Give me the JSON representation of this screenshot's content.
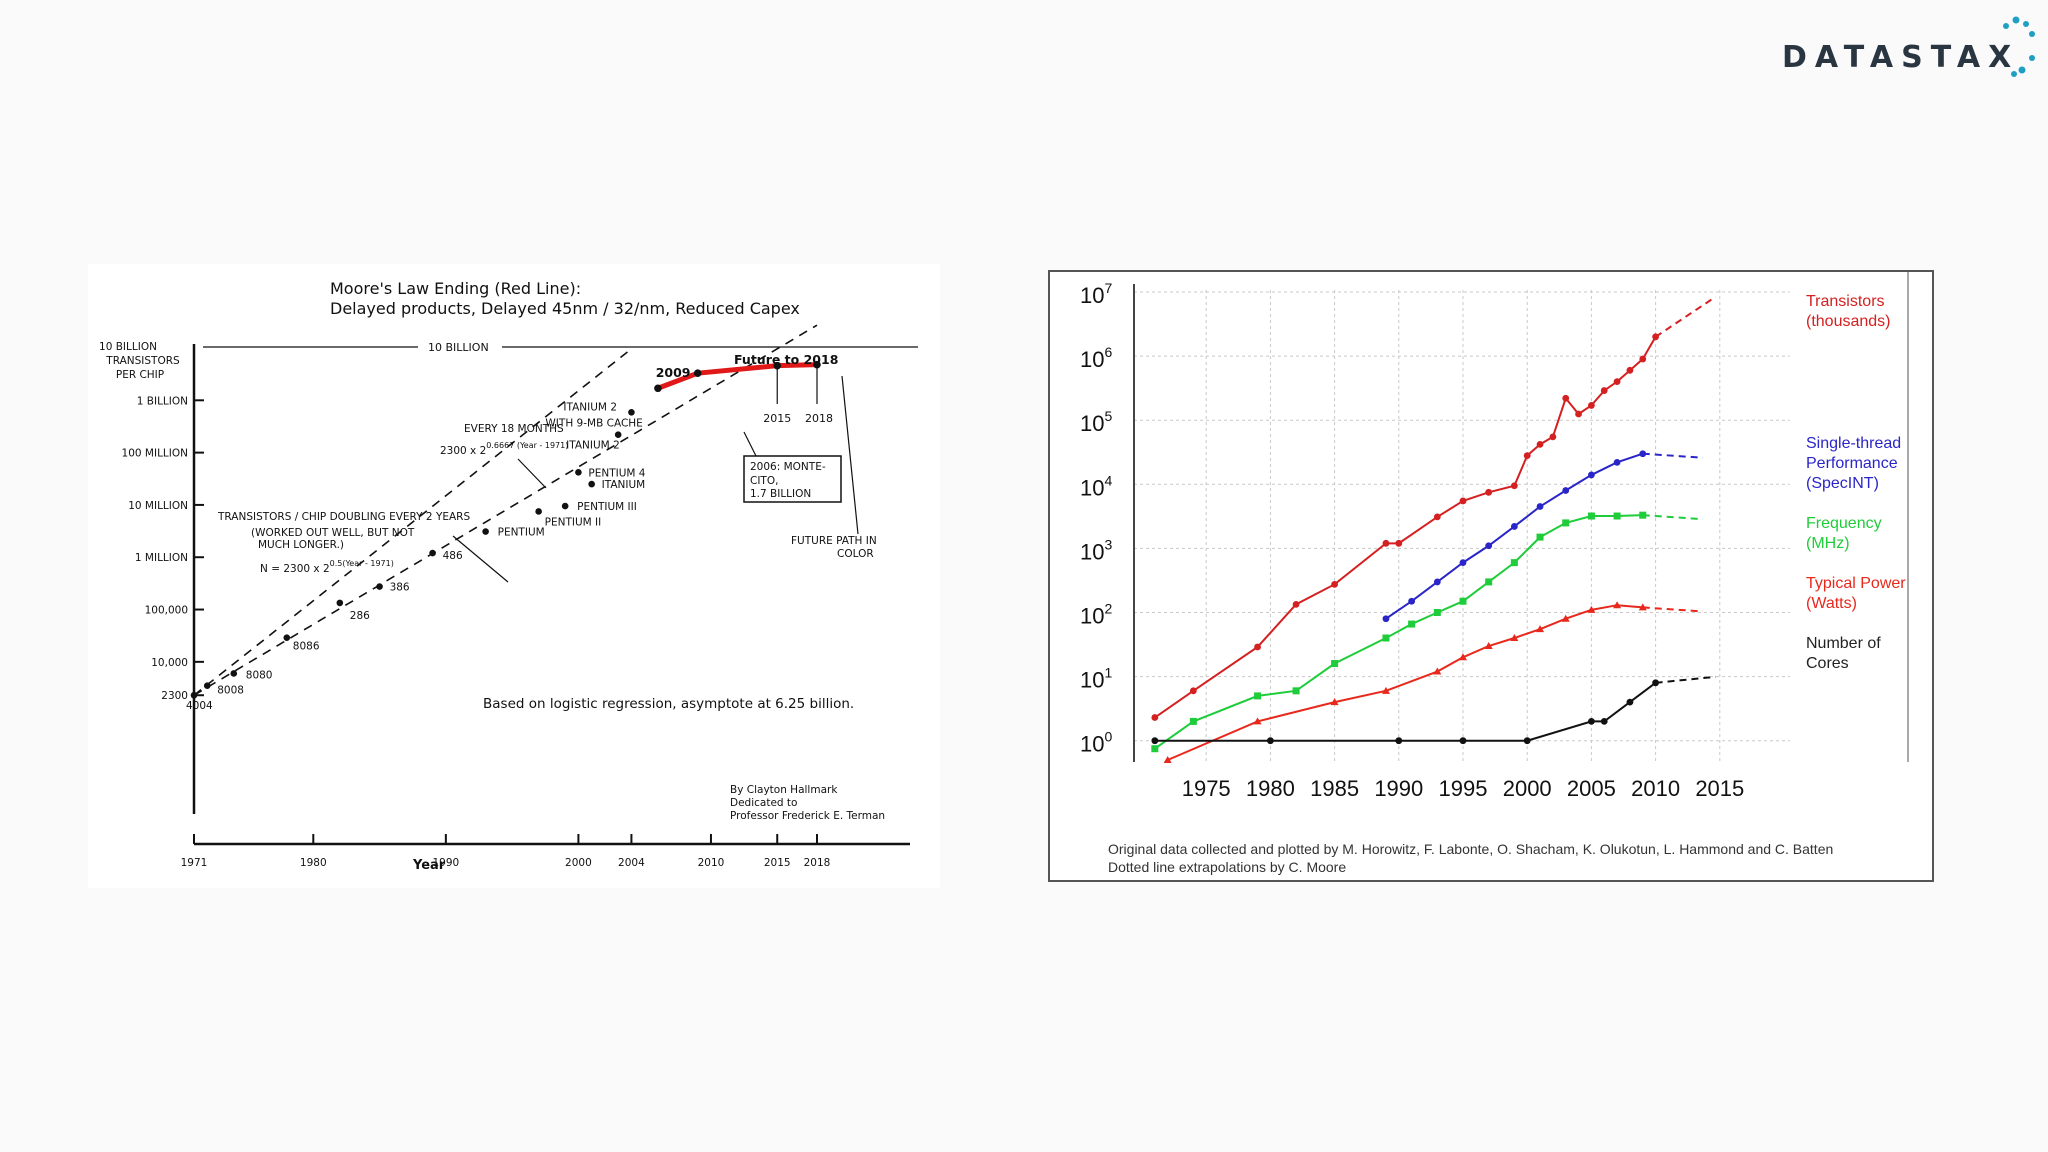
{
  "brand": {
    "logo_text": "DATASTAX",
    "accent": "#1e9fc3"
  },
  "chart_data": [
    {
      "type": "scatter",
      "title": "Moore's Law Ending (Red Line):",
      "subtitle": "Delayed products, Delayed 45nm / 32/nm, Reduced Capex",
      "xlabel": "Year",
      "ylabel": "10 BILLION TRANSISTORS PER CHIP",
      "y_scale": "log",
      "xlim": [
        1971,
        2018
      ],
      "ylim": [
        2300,
        10000000000
      ],
      "x_ticks": [
        "1971",
        "1980",
        "1990",
        "2000",
        "2004",
        "2010",
        "2015",
        "2018"
      ],
      "y_ticks": [
        {
          "label": "2300",
          "value": 2300
        },
        {
          "label": "10,000",
          "value": 10000
        },
        {
          "label": "100,000",
          "value": 100000
        },
        {
          "label": "1 MILLION",
          "value": 1000000
        },
        {
          "label": "10 MILLION",
          "value": 10000000
        },
        {
          "label": "100 MILLION",
          "value": 100000000
        },
        {
          "label": "1 BILLION",
          "value": 1000000000
        }
      ],
      "ten_billion_label": "10 BILLION",
      "points": [
        {
          "label": "4004",
          "x": 1971,
          "y": 2300
        },
        {
          "label": "8008",
          "x": 1972,
          "y": 3500
        },
        {
          "label": "8080",
          "x": 1974,
          "y": 6000
        },
        {
          "label": "8086",
          "x": 1978,
          "y": 29000
        },
        {
          "label": "286",
          "x": 1982,
          "y": 134000
        },
        {
          "label": "386",
          "x": 1985,
          "y": 275000
        },
        {
          "label": "486",
          "x": 1989,
          "y": 1200000
        },
        {
          "label": "PENTIUM",
          "x": 1993,
          "y": 3100000
        },
        {
          "label": "PENTIUM II",
          "x": 1997,
          "y": 7500000
        },
        {
          "label": "PENTIUM III",
          "x": 1999,
          "y": 9500000
        },
        {
          "label": "PENTIUM 4",
          "x": 2000,
          "y": 42000000
        },
        {
          "label": "ITANIUM",
          "x": 2001,
          "y": 25000000
        },
        {
          "label": "ITANIUM 2",
          "x": 2003,
          "y": 220000000
        },
        {
          "label": "ITANIUM 2 WITH 9-MB CACHE",
          "x": 2004,
          "y": 590000000
        }
      ],
      "red_line": {
        "name": "Future to 2018",
        "x": [
          2006,
          2009,
          2015,
          2018
        ],
        "y": [
          1700000000,
          3300000000,
          4600000000,
          4800000000
        ],
        "color": "#e01818"
      },
      "red_labels": [
        "2009",
        "2015",
        "2018"
      ],
      "dashed_lines": [
        {
          "name": "EVERY 18 MONTHS",
          "formula": "2300 x 2",
          "exponent": "0.6667 (Year - 1971)"
        },
        {
          "name": "TRANSISTORS / CHIP DOUBLING EVERY 2 YEARS",
          "formula": "N = 2300 x 2",
          "exponent": "0.5(Year - 1971)"
        }
      ],
      "annotations": {
        "doubling_note_1": "TRANSISTORS / CHIP DOUBLING EVERY 2 YEARS",
        "doubling_note_2": "(WORKED OUT WELL, BUT NOT",
        "doubling_note_3": "MUCH LONGER.)",
        "montecito_1": "2006: MONTE-",
        "montecito_2": "CITO,",
        "montecito_3": "1.7 BILLION",
        "future_path_1": "FUTURE PATH IN",
        "future_path_2": "COLOR",
        "regression": "Based on logistic regression, asymptote at 6.25 billion.",
        "credit_1": "By Clayton Hallmark",
        "credit_2": "Dedicated to",
        "credit_3": "Professor Frederick E. Terman"
      }
    },
    {
      "type": "scatter",
      "y_scale": "log",
      "xlim": [
        1970,
        2020
      ],
      "ylim": [
        0.5,
        10000000
      ],
      "x_ticks": [
        "1975",
        "1980",
        "1985",
        "1990",
        "1995",
        "2000",
        "2005",
        "2010",
        "2015"
      ],
      "y_tick_exponents": [
        "0",
        "1",
        "2",
        "3",
        "4",
        "5",
        "6",
        "7"
      ],
      "y_tick_base": "10",
      "series": [
        {
          "name": "Transistors",
          "name2": "(thousands)",
          "color": "#d42020",
          "marker": "circle",
          "x": [
            1971,
            1974,
            1979,
            1982,
            1985,
            1989,
            1990,
            1993,
            1995,
            1997,
            1999,
            2000,
            2001,
            2002,
            2003,
            2004,
            2005,
            2006,
            2007,
            2008,
            2009,
            2010
          ],
          "y": [
            2.3,
            6,
            29,
            134,
            275,
            1200,
            1200,
            3100,
            5500,
            7500,
            9500,
            28000,
            42000,
            55000,
            220000,
            125000,
            170000,
            290000,
            400000,
            600000,
            900000,
            2000000
          ]
        },
        {
          "name": "Single-thread",
          "name2": "Performance",
          "name3": "(SpecINT)",
          "color": "#2a25c8",
          "marker": "circle",
          "x": [
            1989,
            1991,
            1993,
            1995,
            1997,
            1999,
            2001,
            2003,
            2005,
            2007,
            2009
          ],
          "y": [
            80,
            150,
            300,
            600,
            1100,
            2200,
            4500,
            8000,
            14000,
            22000,
            30000
          ]
        },
        {
          "name": "Frequency",
          "name2": "(MHz)",
          "color": "#1fcc3a",
          "marker": "square",
          "x": [
            1971,
            1974,
            1979,
            1982,
            1985,
            1989,
            1991,
            1993,
            1995,
            1997,
            1999,
            2001,
            2003,
            2005,
            2007,
            2009
          ],
          "y": [
            0.75,
            2,
            5,
            6,
            16,
            40,
            66,
            100,
            150,
            300,
            600,
            1500,
            2500,
            3200,
            3200,
            3300
          ]
        },
        {
          "name": "Typical Power",
          "name2": "(Watts)",
          "color": "#e8281c",
          "marker": "triangle",
          "x": [
            1972,
            1979,
            1985,
            1989,
            1993,
            1995,
            1997,
            1999,
            2001,
            2003,
            2005,
            2007,
            2009
          ],
          "y": [
            0.5,
            2,
            4,
            6,
            12,
            20,
            30,
            40,
            55,
            80,
            110,
            130,
            120
          ]
        },
        {
          "name": "Number of",
          "name2": "Cores",
          "color": "#111111",
          "marker": "circle",
          "x": [
            1971,
            1980,
            1990,
            1995,
            2000,
            2005,
            2006,
            2008,
            2010
          ],
          "y": [
            1,
            1,
            1,
            1,
            1,
            2,
            2,
            4,
            8
          ]
        }
      ],
      "caption_1": "Original data collected and plotted by M. Horowitz, F. Labonte, O. Shacham, K. Olukotun, L. Hammond and C. Batten",
      "caption_2": "Dotted line extrapolations by C. Moore"
    }
  ]
}
